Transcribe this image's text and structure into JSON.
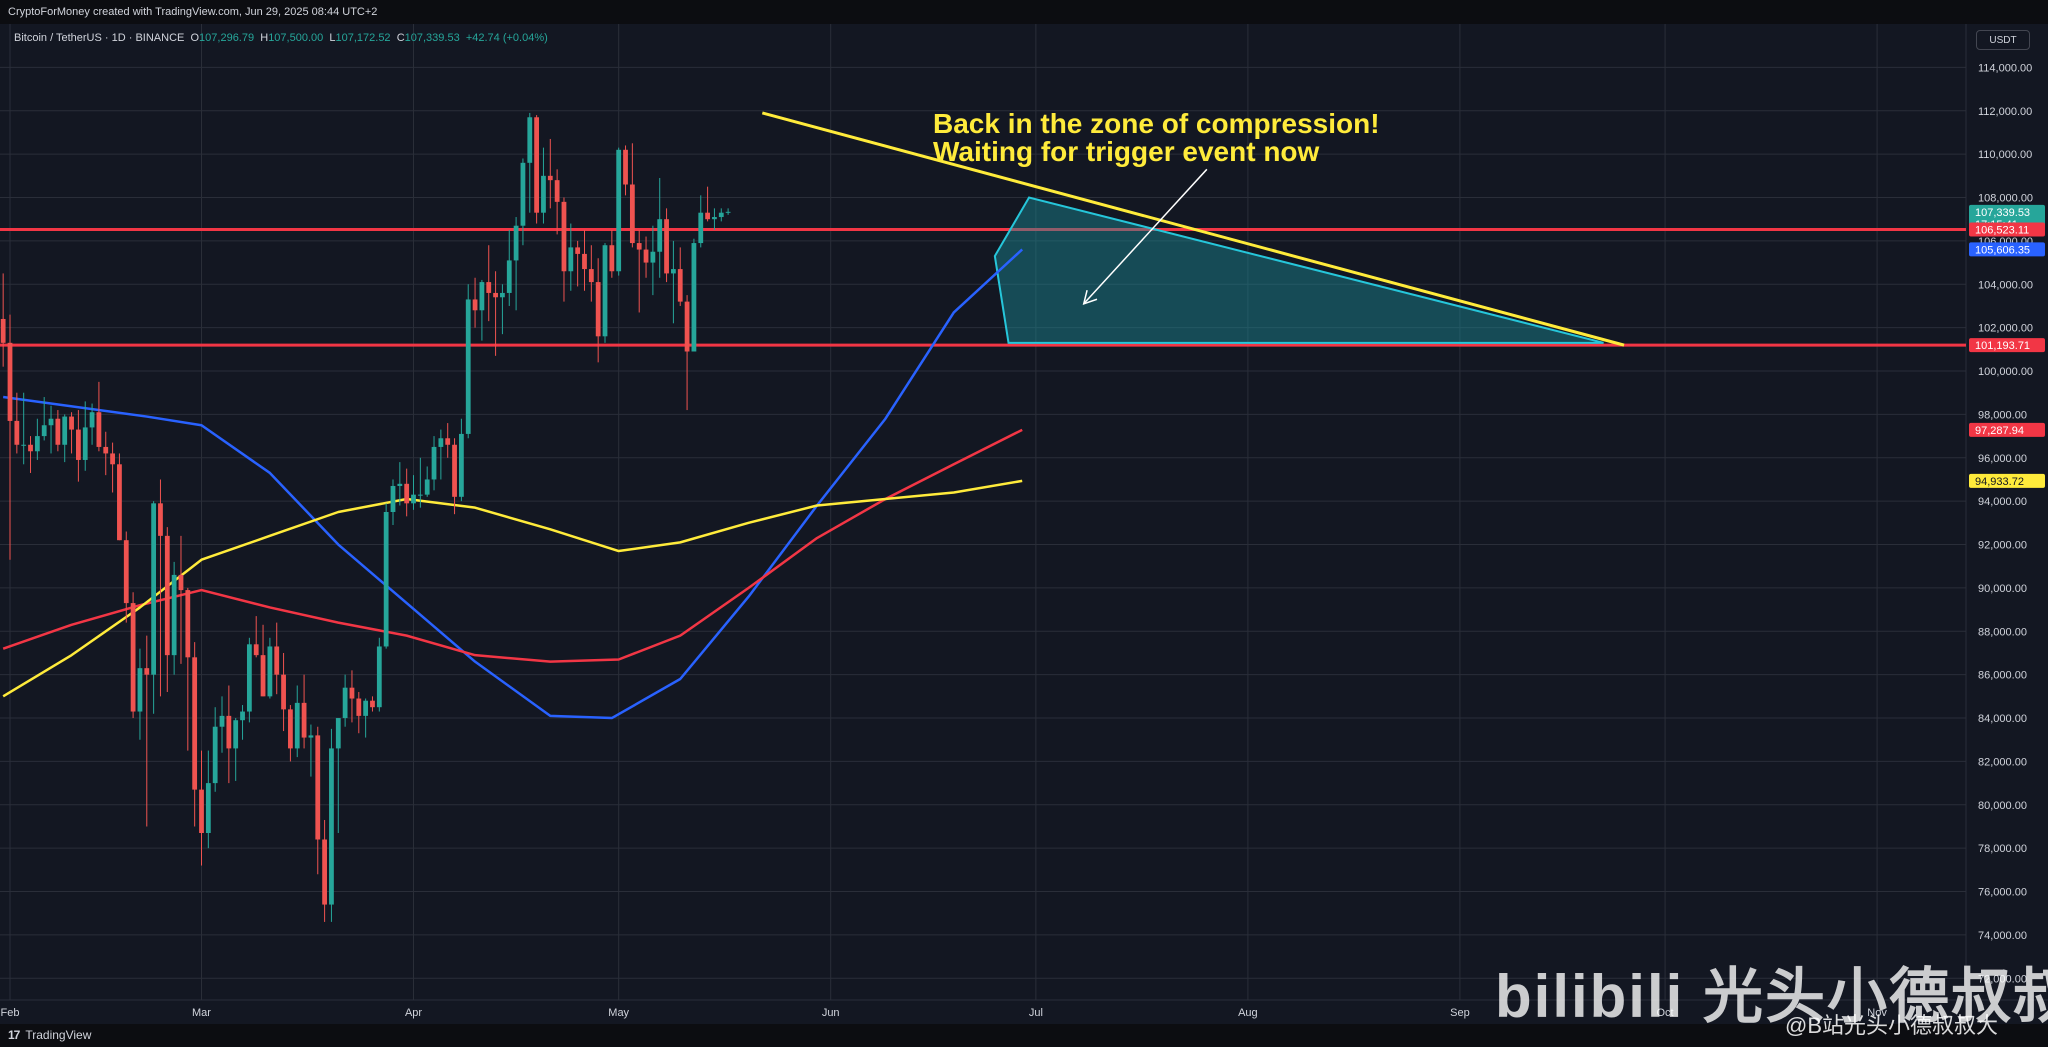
{
  "header": {
    "attribution": "CryptoForMoney created with TradingView.com, Jun 29, 2025 08:44 UTC+2"
  },
  "legend": {
    "symbol": "Bitcoin / TetherUS · 1D · BINANCE",
    "o_label": "O",
    "o_value": "107,296.79",
    "h_label": "H",
    "h_value": "107,500.00",
    "l_label": "L",
    "l_value": "107,172.52",
    "c_label": "C",
    "c_value": "107,339.53",
    "change": "+42.74 (+0.04%)"
  },
  "currency_button": "USDT",
  "annotation": {
    "line1": "Back in the zone of compression!",
    "line2": "Waiting for trigger event now"
  },
  "footer": {
    "brand": "TradingView"
  },
  "watermark": {
    "main": "bilibili 光头小德叔叔大",
    "sub": "@B站光头小德叔叔大"
  },
  "colors": {
    "background": "#131722",
    "grid": "#2a2e39",
    "up": "#26a69a",
    "down": "#ef5350",
    "resistance": "#f23645",
    "triangle_line": "#ffeb3b",
    "ma_blue": "#2962ff",
    "ma_red": "#f23645",
    "ma_yellow": "#ffeb3b",
    "zone_fill": "#1a8b96"
  },
  "chart_data": {
    "type": "candlestick",
    "symbol": "BTCUSDT",
    "timeframe": "1D",
    "ylim": [
      71000,
      116000
    ],
    "y_ticks": [
      72000,
      74000,
      76000,
      78000,
      80000,
      82000,
      84000,
      86000,
      88000,
      90000,
      92000,
      94000,
      96000,
      98000,
      100000,
      102000,
      104000,
      106000,
      108000,
      110000,
      112000,
      114000
    ],
    "y_tick_labels": [
      "72,000.00",
      "74,000.00",
      "76,000.00",
      "78,000.00",
      "80,000.00",
      "82,000.00",
      "84,000.00",
      "86,000.00",
      "88,000.00",
      "90,000.00",
      "92,000.00",
      "94,000.00",
      "96,000.00",
      "98,000.00",
      "100,000.00",
      "102,000.00",
      "104,000.00",
      "106,000.00",
      "108,000.00",
      "110,000.00",
      "112,000.00",
      "114,000.00"
    ],
    "x_range": [
      "2025-02-01",
      "2025-11-14"
    ],
    "x_ticks": [
      {
        "date": "2025-02-01",
        "label": "Feb"
      },
      {
        "date": "2025-03-01",
        "label": "Mar"
      },
      {
        "date": "2025-04-01",
        "label": "Apr"
      },
      {
        "date": "2025-05-01",
        "label": "May"
      },
      {
        "date": "2025-06-01",
        "label": "Jun"
      },
      {
        "date": "2025-07-01",
        "label": "Jul"
      },
      {
        "date": "2025-08-01",
        "label": "Aug"
      },
      {
        "date": "2025-09-01",
        "label": "Sep"
      },
      {
        "date": "2025-10-01",
        "label": "Oct"
      },
      {
        "date": "2025-11-01",
        "label": "Nov"
      }
    ],
    "candles_ohlc": [
      [
        102400,
        104500,
        100200,
        101300
      ],
      [
        101300,
        102600,
        91300,
        97700
      ],
      [
        97700,
        99000,
        96200,
        96600
      ],
      [
        96600,
        99000,
        95700,
        96600
      ],
      [
        96600,
        97000,
        95300,
        96300
      ],
      [
        96300,
        97800,
        95900,
        97000
      ],
      [
        97000,
        98800,
        96800,
        97500
      ],
      [
        97500,
        98400,
        96200,
        97800
      ],
      [
        97800,
        98200,
        96300,
        96600
      ],
      [
        96600,
        98000,
        95800,
        97900
      ],
      [
        97900,
        98100,
        96200,
        97300
      ],
      [
        97300,
        98200,
        94900,
        95900
      ],
      [
        95900,
        98600,
        95400,
        97400
      ],
      [
        97400,
        98500,
        96600,
        98100
      ],
      [
        98100,
        99500,
        96300,
        96500
      ],
      [
        96500,
        97200,
        95200,
        96200
      ],
      [
        96200,
        96700,
        94400,
        95700
      ],
      [
        95700,
        96200,
        92200,
        92200
      ],
      [
        92200,
        92600,
        88400,
        89300
      ],
      [
        89300,
        89800,
        84000,
        84300
      ],
      [
        84300,
        87200,
        83000,
        86300
      ],
      [
        86300,
        87800,
        79000,
        86000
      ],
      [
        86000,
        94000,
        84200,
        93900
      ],
      [
        93900,
        95000,
        85000,
        92400
      ],
      [
        92400,
        92800,
        85200,
        86900
      ],
      [
        86900,
        91200,
        86000,
        90600
      ],
      [
        90600,
        92400,
        86500,
        89900
      ],
      [
        89900,
        90000,
        82500,
        86800
      ],
      [
        86800,
        87500,
        79000,
        80700
      ],
      [
        80700,
        82500,
        77200,
        78700
      ],
      [
        78700,
        82500,
        78000,
        81000
      ],
      [
        81000,
        84500,
        80600,
        83600
      ],
      [
        83600,
        85000,
        82400,
        84100
      ],
      [
        84100,
        85500,
        81000,
        82600
      ],
      [
        82600,
        84000,
        81100,
        83900
      ],
      [
        83900,
        84600,
        83000,
        84300
      ],
      [
        84300,
        87700,
        83800,
        87400
      ],
      [
        87400,
        88700,
        86800,
        86900
      ],
      [
        86900,
        88300,
        85000,
        85000
      ],
      [
        85000,
        87700,
        84900,
        87300
      ],
      [
        87300,
        88400,
        85100,
        86000
      ],
      [
        86000,
        87000,
        83400,
        84400
      ],
      [
        84400,
        84600,
        82000,
        82600
      ],
      [
        82600,
        85500,
        82200,
        84700
      ],
      [
        84700,
        86000,
        82600,
        83100
      ],
      [
        83100,
        83700,
        81300,
        83200
      ],
      [
        83200,
        83600,
        76800,
        78400
      ],
      [
        78400,
        79300,
        74600,
        75400
      ],
      [
        75400,
        83500,
        74600,
        82600
      ],
      [
        82600,
        84000,
        78700,
        84000
      ],
      [
        84000,
        86000,
        83600,
        85400
      ],
      [
        85400,
        86200,
        83800,
        84900
      ],
      [
        84900,
        85200,
        83300,
        84100
      ],
      [
        84100,
        84900,
        83100,
        84800
      ],
      [
        84800,
        85000,
        84300,
        84500
      ],
      [
        84500,
        87700,
        84300,
        87300
      ],
      [
        87300,
        93900,
        87200,
        93500
      ],
      [
        93500,
        95000,
        92900,
        94700
      ],
      [
        94700,
        95800,
        93800,
        94800
      ],
      [
        94800,
        95500,
        93300,
        93900
      ],
      [
        93900,
        95200,
        93600,
        94300
      ],
      [
        94300,
        96000,
        93700,
        94300
      ],
      [
        94300,
        95600,
        94200,
        95000
      ],
      [
        95000,
        97000,
        94500,
        96500
      ],
      [
        96500,
        97300,
        95000,
        96900
      ],
      [
        96900,
        97600,
        96000,
        96600
      ],
      [
        96600,
        96900,
        93400,
        94200
      ],
      [
        94200,
        97800,
        94000,
        97100
      ],
      [
        97100,
        104000,
        96900,
        103300
      ],
      [
        103300,
        104300,
        102000,
        102800
      ],
      [
        102800,
        104200,
        101400,
        104100
      ],
      [
        104100,
        105800,
        102300,
        103600
      ],
      [
        103600,
        104600,
        100700,
        103400
      ],
      [
        103400,
        104000,
        101700,
        103600
      ],
      [
        103600,
        106500,
        103000,
        105100
      ],
      [
        105100,
        107100,
        102800,
        106700
      ],
      [
        106700,
        109800,
        105800,
        109600
      ],
      [
        109600,
        111900,
        107300,
        111700
      ],
      [
        111700,
        111800,
        106800,
        107300
      ],
      [
        107300,
        110300,
        106800,
        109000
      ],
      [
        109000,
        110700,
        107500,
        108800
      ],
      [
        108800,
        109300,
        106300,
        107800
      ],
      [
        107800,
        108000,
        103200,
        104600
      ],
      [
        104600,
        106800,
        103700,
        105700
      ],
      [
        105700,
        106000,
        103900,
        105400
      ],
      [
        105400,
        106500,
        103700,
        104700
      ],
      [
        104700,
        105800,
        103200,
        104100
      ],
      [
        104100,
        105200,
        100400,
        101600
      ],
      [
        101600,
        105900,
        101300,
        105800
      ],
      [
        105800,
        106500,
        104300,
        104600
      ],
      [
        104600,
        110300,
        104400,
        110200
      ],
      [
        110200,
        110400,
        108100,
        108600
      ],
      [
        108600,
        110500,
        105700,
        105900
      ],
      [
        105900,
        106500,
        102700,
        105600
      ],
      [
        105600,
        106200,
        104300,
        105000
      ],
      [
        105000,
        106700,
        103500,
        105500
      ],
      [
        105500,
        108900,
        104300,
        107000
      ],
      [
        107000,
        107500,
        104100,
        104500
      ],
      [
        104500,
        106000,
        102200,
        104700
      ],
      [
        104700,
        105700,
        103000,
        103200
      ],
      [
        103200,
        103500,
        98200,
        100900
      ],
      [
        100900,
        106100,
        100900,
        105900
      ],
      [
        105900,
        108100,
        105700,
        107300
      ],
      [
        107300,
        108500,
        106900,
        107000
      ],
      [
        107000,
        107500,
        106500,
        107100
      ],
      [
        107100,
        107500,
        106900,
        107300
      ],
      [
        107300,
        107500,
        107200,
        107340
      ]
    ],
    "candles_start_date": "2025-01-31",
    "horizontal_levels": [
      {
        "name": "resistance",
        "value": 106523.11,
        "label": "106,523.11"
      },
      {
        "name": "support",
        "value": 101193.71,
        "label": "101,193.71"
      }
    ],
    "trendline": {
      "from": {
        "date": "2025-05-22",
        "value": 111900
      },
      "to": {
        "date": "2025-09-25",
        "value": 101193.71
      }
    },
    "compression_zone": [
      {
        "date": "2025-06-25",
        "value": 105300
      },
      {
        "date": "2025-06-30",
        "value": 108000
      },
      {
        "date": "2025-09-22",
        "value": 101300
      },
      {
        "date": "2025-06-27",
        "value": 101300
      }
    ],
    "arrow": {
      "from": {
        "date": "2025-07-26",
        "value": 109300
      },
      "to": {
        "date": "2025-07-08",
        "value": 103100
      }
    },
    "series": [
      {
        "color": "#2962ff",
        "last_label": "105,606.35",
        "points": [
          [
            "2025-01-31",
            98800
          ],
          [
            "2025-02-21",
            97900
          ],
          [
            "2025-03-01",
            97500
          ],
          [
            "2025-03-11",
            95300
          ],
          [
            "2025-03-21",
            92000
          ],
          [
            "2025-03-31",
            89300
          ],
          [
            "2025-04-10",
            86600
          ],
          [
            "2025-04-21",
            84100
          ],
          [
            "2025-04-30",
            84000
          ],
          [
            "2025-05-10",
            85800
          ],
          [
            "2025-05-20",
            89600
          ],
          [
            "2025-05-30",
            93800
          ],
          [
            "2025-06-09",
            97800
          ],
          [
            "2025-06-19",
            102700
          ],
          [
            "2025-06-29",
            105606
          ]
        ]
      },
      {
        "color": "#f23645",
        "last_label": "97,287.94",
        "points": [
          [
            "2025-01-31",
            87200
          ],
          [
            "2025-02-10",
            88300
          ],
          [
            "2025-02-20",
            89200
          ],
          [
            "2025-03-01",
            89900
          ],
          [
            "2025-03-11",
            89100
          ],
          [
            "2025-03-21",
            88400
          ],
          [
            "2025-03-31",
            87800
          ],
          [
            "2025-04-10",
            86900
          ],
          [
            "2025-04-21",
            86600
          ],
          [
            "2025-05-01",
            86700
          ],
          [
            "2025-05-10",
            87800
          ],
          [
            "2025-05-20",
            90000
          ],
          [
            "2025-05-30",
            92300
          ],
          [
            "2025-06-09",
            94100
          ],
          [
            "2025-06-19",
            95700
          ],
          [
            "2025-06-29",
            97288
          ]
        ]
      },
      {
        "color": "#ffeb3b",
        "last_label": "94,933.72",
        "points": [
          [
            "2025-01-31",
            85000
          ],
          [
            "2025-02-10",
            86900
          ],
          [
            "2025-02-20",
            89100
          ],
          [
            "2025-03-01",
            91300
          ],
          [
            "2025-03-11",
            92400
          ],
          [
            "2025-03-21",
            93500
          ],
          [
            "2025-03-31",
            94100
          ],
          [
            "2025-04-10",
            93700
          ],
          [
            "2025-04-21",
            92700
          ],
          [
            "2025-05-01",
            91700
          ],
          [
            "2025-05-10",
            92100
          ],
          [
            "2025-05-20",
            93000
          ],
          [
            "2025-05-30",
            93800
          ],
          [
            "2025-06-09",
            94100
          ],
          [
            "2025-06-19",
            94400
          ],
          [
            "2025-06-29",
            94934
          ]
        ]
      }
    ],
    "price_labels": [
      {
        "value": 107339.53,
        "text": "107,339.53",
        "sub": "17:15:41",
        "color": "#26a69a"
      },
      {
        "value": 106523.11,
        "text": "106,523.11",
        "color": "#f23645"
      },
      {
        "value": 105606.35,
        "text": "105,606.35",
        "color": "#2962ff"
      },
      {
        "value": 101193.71,
        "text": "101,193.71",
        "color": "#f23645"
      },
      {
        "value": 97287.94,
        "text": "97,287.94",
        "color": "#f23645"
      },
      {
        "value": 94933.72,
        "text": "94,933.72",
        "color": "#ffeb3b"
      }
    ]
  }
}
